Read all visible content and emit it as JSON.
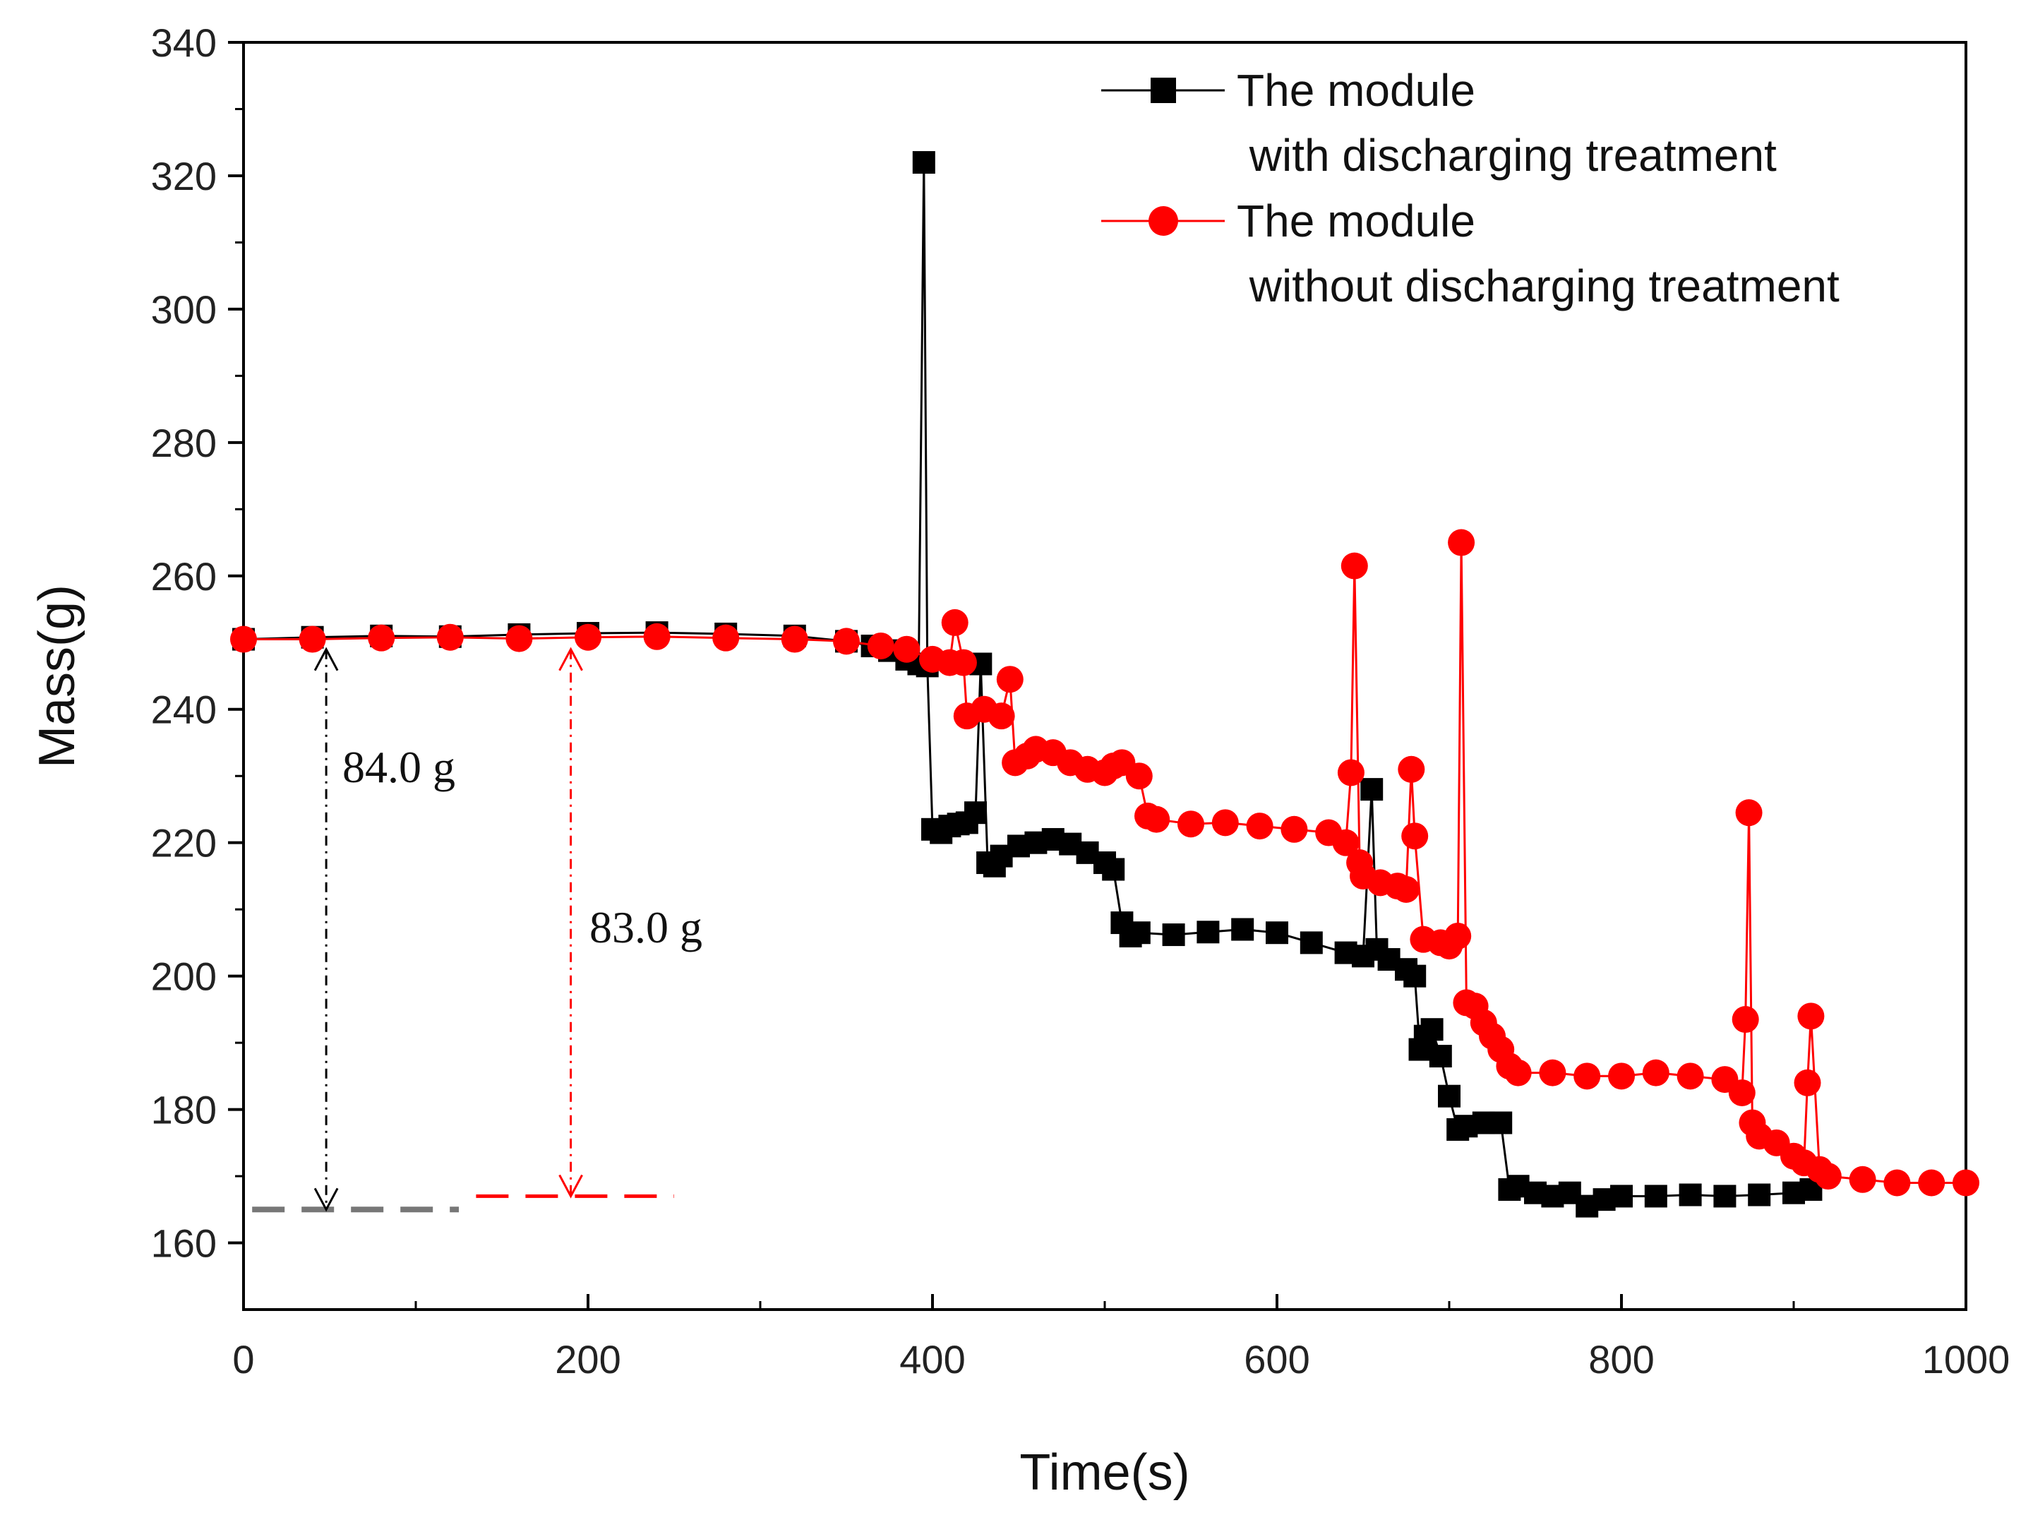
{
  "chart_data": {
    "type": "line",
    "title": "",
    "xlabel": "Time(s)",
    "ylabel": "Mass(g)",
    "xlim": [
      0,
      1000
    ],
    "ylim": [
      150,
      340
    ],
    "x_ticks": [
      0,
      200,
      400,
      600,
      800,
      1000
    ],
    "y_ticks": [
      160,
      180,
      200,
      220,
      240,
      260,
      280,
      300,
      320,
      340
    ],
    "grid": false,
    "legend_position": "top-right",
    "series": [
      {
        "name": "The module with discharging treatment",
        "legend_lines": [
          "The module",
          " with discharging treatment"
        ],
        "color": "#000000",
        "marker": "square",
        "x": [
          0,
          40,
          80,
          120,
          160,
          200,
          240,
          280,
          320,
          350,
          365,
          375,
          385,
          392,
          395,
          397,
          400,
          405,
          410,
          415,
          420,
          425,
          428,
          432,
          436,
          440,
          450,
          460,
          470,
          480,
          490,
          500,
          505,
          510,
          515,
          520,
          540,
          560,
          580,
          600,
          620,
          640,
          650,
          655,
          658,
          665,
          675,
          680,
          683,
          686,
          690,
          695,
          700,
          705,
          710,
          720,
          730,
          735,
          740,
          750,
          760,
          770,
          780,
          790,
          800,
          820,
          840,
          860,
          880,
          900,
          910
        ],
        "y": [
          250.5,
          250.8,
          251,
          250.9,
          251.2,
          251.4,
          251.5,
          251.3,
          251,
          250.2,
          249.5,
          248.8,
          247.5,
          246.8,
          322,
          246.5,
          222,
          221.5,
          222.5,
          222.8,
          223,
          224.5,
          246.8,
          217,
          216.5,
          218,
          219.5,
          220,
          220.5,
          219.8,
          218.5,
          217,
          216,
          208,
          206,
          206.5,
          206.2,
          206.6,
          207,
          206.5,
          205,
          203.5,
          203,
          228,
          204,
          202.5,
          201,
          200,
          189,
          191,
          192,
          188,
          182,
          177,
          177.5,
          178,
          178,
          168,
          168.5,
          167.5,
          167,
          167.5,
          165.5,
          166.5,
          167,
          167,
          167.2,
          167,
          167.2,
          167.5,
          168
        ]
      },
      {
        "name": "The module without discharging treatment",
        "legend_lines": [
          "The module",
          " without discharging treatment"
        ],
        "color": "#ff0000",
        "marker": "circle",
        "x": [
          0,
          40,
          80,
          120,
          160,
          200,
          240,
          280,
          320,
          350,
          370,
          385,
          400,
          410,
          413,
          418,
          420,
          430,
          440,
          445,
          448,
          455,
          460,
          470,
          480,
          490,
          500,
          505,
          510,
          520,
          525,
          530,
          550,
          570,
          590,
          610,
          630,
          640,
          643,
          645,
          648,
          650,
          660,
          670,
          675,
          678,
          680,
          685,
          695,
          700,
          705,
          707,
          710,
          715,
          720,
          725,
          730,
          735,
          740,
          760,
          780,
          800,
          820,
          840,
          860,
          870,
          872,
          874,
          876,
          880,
          890,
          900,
          906,
          908,
          910,
          915,
          920,
          940,
          960,
          980,
          1000
        ],
        "y": [
          250.5,
          250.5,
          250.7,
          250.8,
          250.6,
          250.8,
          250.9,
          250.7,
          250.5,
          250.2,
          249.5,
          249,
          247.5,
          247,
          253,
          247,
          239,
          240,
          239,
          244.5,
          232,
          233,
          234,
          233.5,
          232,
          231,
          230.5,
          231.5,
          232,
          230,
          224,
          223.5,
          222.8,
          223,
          222.5,
          222,
          221.5,
          220,
          230.5,
          261.5,
          217,
          215,
          214,
          213.5,
          213,
          231,
          221,
          205.5,
          205,
          204.5,
          206,
          265,
          196,
          195.5,
          193,
          191,
          189,
          186.5,
          185.5,
          185.5,
          185,
          185,
          185.5,
          185,
          184.5,
          182.5,
          193.5,
          224.5,
          178,
          176,
          175,
          173,
          172,
          184,
          194,
          171,
          170,
          169.5,
          169,
          169,
          169
        ]
      }
    ],
    "annotations": [
      {
        "text": "84.0 g",
        "color": "#000000",
        "arrow_x": 48,
        "y_top": 249,
        "y_bottom": 165,
        "ref_line_x": [
          5,
          125
        ],
        "ref_line_y": 165,
        "ref_line_color": "#777777"
      },
      {
        "text": "83.0 g",
        "color": "#ff0000",
        "arrow_x": 190,
        "y_top": 249,
        "y_bottom": 167,
        "ref_line_x": [
          135,
          250
        ],
        "ref_line_y": 167,
        "ref_line_color": "#ff0000"
      }
    ]
  }
}
